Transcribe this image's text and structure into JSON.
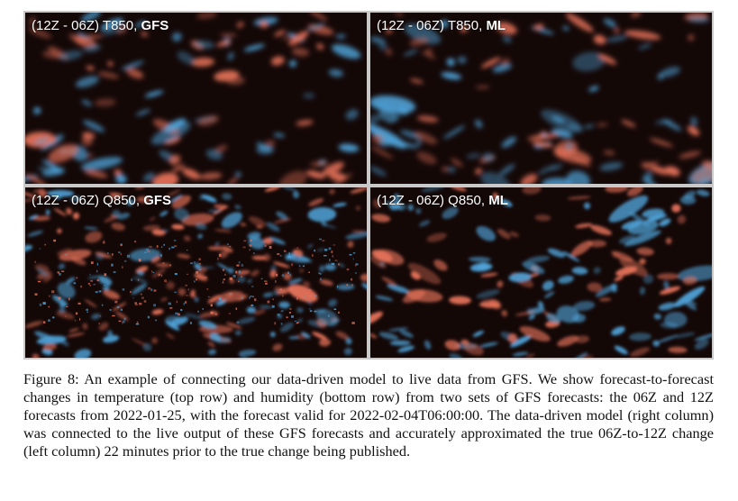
{
  "figure": {
    "panels": [
      {
        "prefix": "(12Z - 06Z) T850, ",
        "model": "GFS",
        "variable": "temperature"
      },
      {
        "prefix": "(12Z - 06Z) T850, ",
        "model": "ML",
        "variable": "temperature"
      },
      {
        "prefix": "(12Z - 06Z) Q850, ",
        "model": "GFS",
        "variable": "humidity"
      },
      {
        "prefix": "(12Z - 06Z) Q850, ",
        "model": "ML",
        "variable": "humidity"
      }
    ],
    "colors": {
      "background": "#140807",
      "positive": "#e8735a",
      "negative": "#4fa3d9",
      "divider": "#c9c9c9"
    }
  },
  "caption": {
    "text": "Figure 8: An example of connecting our data-driven model to live data from GFS. We show forecast-to-forecast changes in temperature (top row) and humidity (bottom row) from two sets of GFS forecasts: the 06Z and 12Z forecasts from 2022-01-25, with the forecast valid for 2022-02-04T06:00:00. The data-driven model (right column) was connected to the live output of these GFS forecasts and accurately approximated the true 06Z-to-12Z change (left column) 22 minutes prior to the true change being published."
  }
}
